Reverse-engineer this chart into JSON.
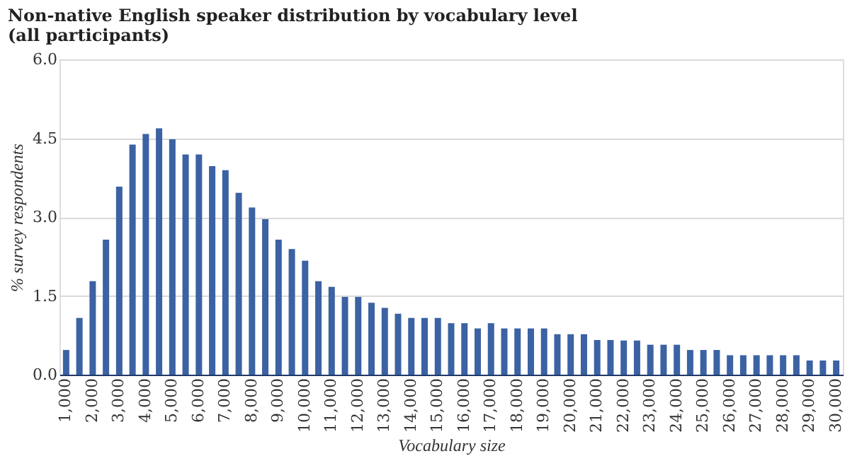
{
  "chart_data": {
    "type": "bar",
    "title": "Non-native English speaker distribution by vocabulary level (all participants)",
    "xlabel": "Vocabulary size",
    "ylabel": "% survey respondents",
    "categories": [
      "1,000",
      null,
      "2,000",
      null,
      "3,000",
      null,
      "4,000",
      null,
      "5,000",
      null,
      "6,000",
      null,
      "7,000",
      null,
      "8,000",
      null,
      "9,000",
      null,
      "10,000",
      null,
      "11,000",
      null,
      "12,000",
      null,
      "13,000",
      null,
      "14,000",
      null,
      "15,000",
      null,
      "16,000",
      null,
      "17,000",
      null,
      "18,000",
      null,
      "19,000",
      null,
      "20,000",
      null,
      "21,000",
      null,
      "22,000",
      null,
      "23,000",
      null,
      "24,000",
      null,
      "25,000",
      null,
      "26,000",
      null,
      "27,000",
      null,
      "28,000",
      null,
      "29,000",
      null,
      "30,000"
    ],
    "values": [
      0.47,
      1.08,
      1.78,
      2.57,
      3.58,
      4.38,
      4.58,
      4.69,
      4.48,
      4.19,
      4.19,
      3.97,
      3.89,
      3.46,
      3.18,
      2.96,
      2.57,
      2.39,
      2.17,
      1.78,
      1.67,
      1.48,
      1.48,
      1.37,
      1.27,
      1.16,
      1.08,
      1.08,
      1.08,
      0.98,
      0.98,
      0.88,
      0.98,
      0.88,
      0.88,
      0.88,
      0.88,
      0.77,
      0.77,
      0.77,
      0.66,
      0.66,
      0.65,
      0.65,
      0.57,
      0.57,
      0.57,
      0.47,
      0.47,
      0.47,
      0.37,
      0.37,
      0.37,
      0.37,
      0.37,
      0.37,
      0.27,
      0.27,
      0.27
    ],
    "color": "#3b62a3",
    "ylim": [
      0,
      6
    ],
    "yticks": [
      {
        "value": 0,
        "label": "0.0"
      },
      {
        "value": 1.5,
        "label": "1.5"
      },
      {
        "value": 3,
        "label": "3.0"
      },
      {
        "value": 4.5,
        "label": "4.5"
      },
      {
        "value": 6,
        "label": "6.0"
      }
    ],
    "grid": "y"
  }
}
